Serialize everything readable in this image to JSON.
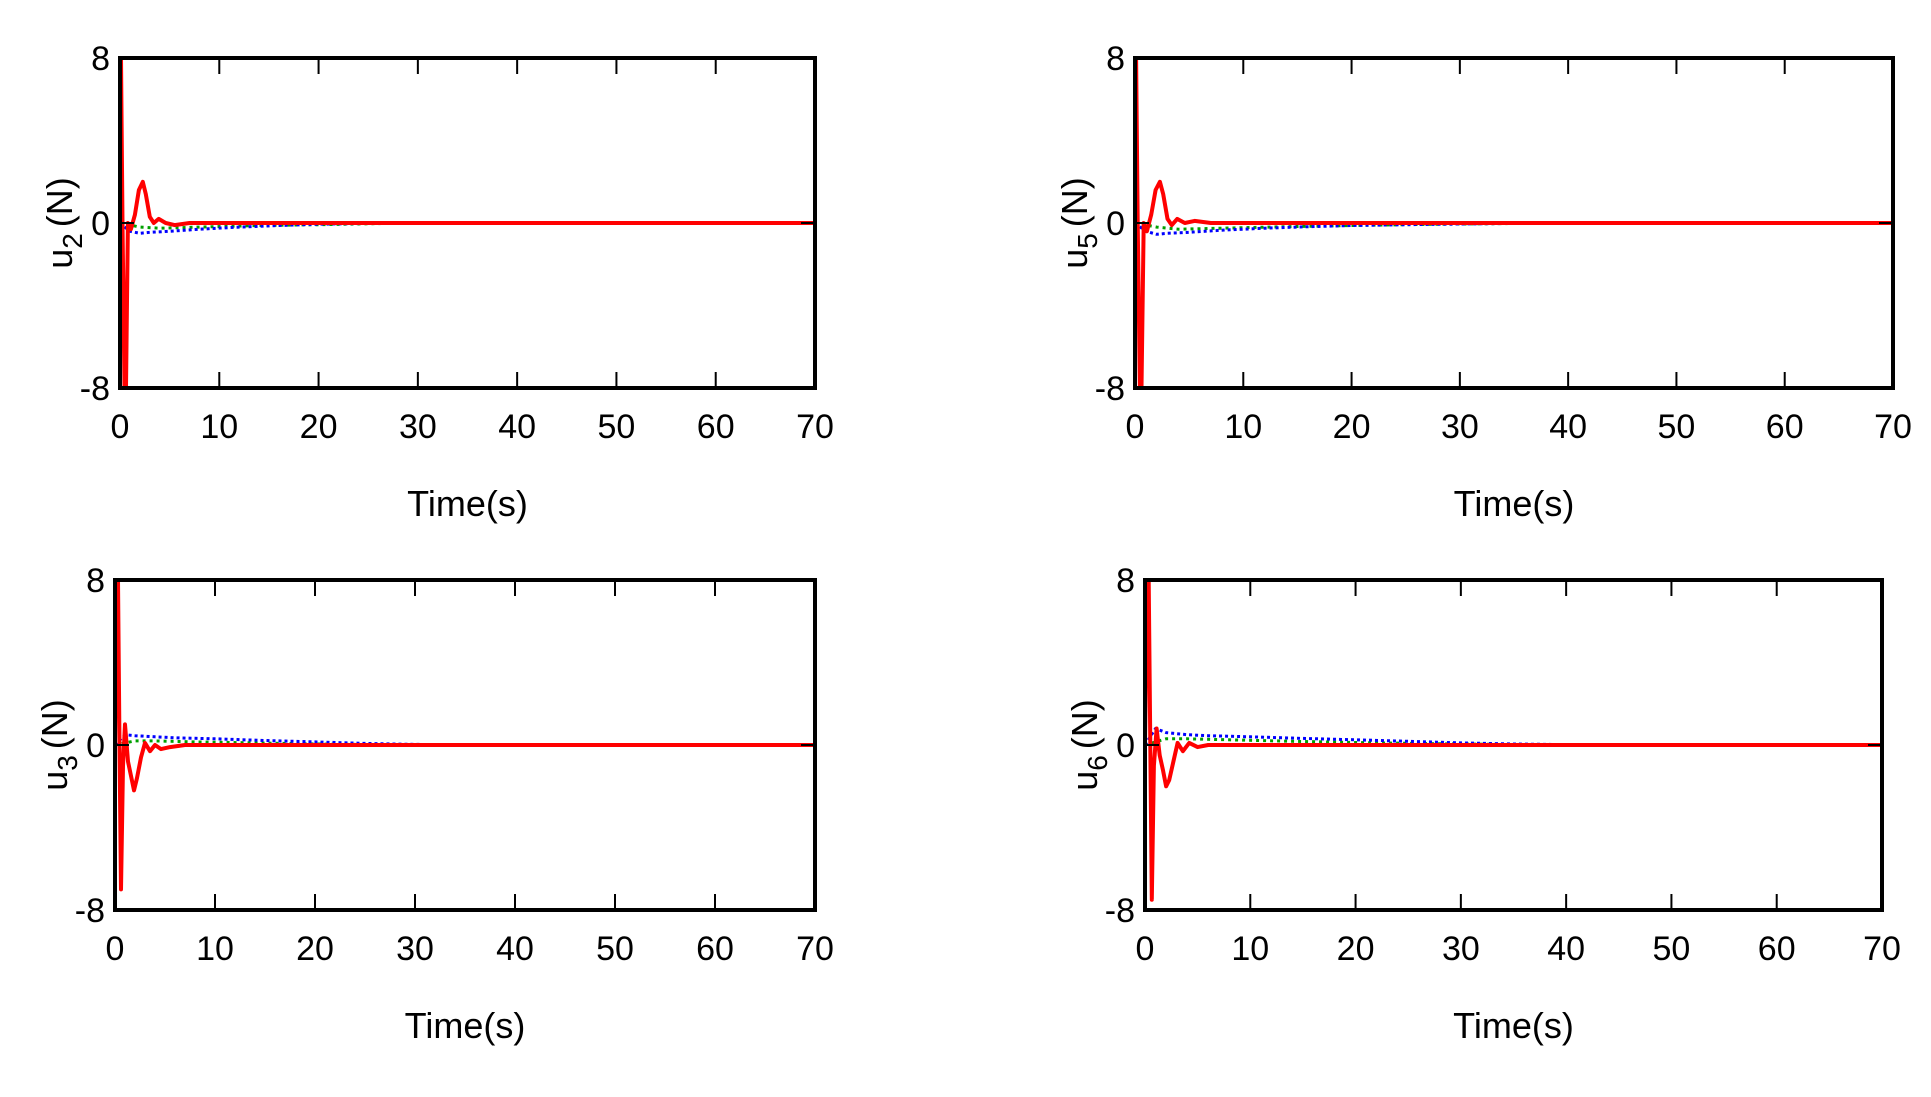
{
  "chart_data": [
    {
      "type": "line",
      "ylabel": "u",
      "ylabel_subscript": "2",
      "ylabel_unit": "(N)",
      "xlabel": "Time(s)",
      "xlim": [
        0,
        70
      ],
      "ylim": [
        -8,
        8
      ],
      "xticks": [
        "0",
        "10",
        "20",
        "30",
        "40",
        "50",
        "60",
        "70"
      ],
      "yticks": [
        "8",
        "0",
        "-8"
      ],
      "colors": {
        "primary": "#ff0000",
        "secondary": "#0000ff",
        "tertiary": "#00a000"
      },
      "series": [
        {
          "values_x": [
            0,
            0.1,
            0.25,
            0.45,
            0.6,
            0.8,
            1.1,
            1.5,
            1.9,
            2.3,
            2.6,
            3.0,
            3.4,
            3.9,
            4.6,
            5.5,
            7,
            10,
            20,
            30,
            40,
            50,
            60,
            70
          ],
          "values_y": [
            8,
            8,
            0,
            -8,
            -8,
            0,
            -0.3,
            0.4,
            1.6,
            2.0,
            1.4,
            0.3,
            0.0,
            0.2,
            0.0,
            -0.1,
            0.0,
            0.0,
            0.0,
            0.0,
            0.0,
            0.0,
            0.0,
            0.0
          ]
        },
        {
          "values_x": [
            0,
            1,
            2,
            3,
            5,
            8,
            12,
            16,
            20,
            25,
            30,
            40,
            50,
            60,
            70
          ],
          "values_y": [
            0,
            -0.4,
            -0.5,
            -0.45,
            -0.4,
            -0.3,
            -0.2,
            -0.12,
            -0.06,
            -0.02,
            0,
            0,
            0,
            0,
            0
          ]
        },
        {
          "values_x": [
            0,
            2,
            4,
            8,
            14,
            20,
            26,
            30,
            40,
            50,
            60,
            70
          ],
          "values_y": [
            0,
            -0.2,
            -0.25,
            -0.2,
            -0.12,
            -0.08,
            -0.03,
            0,
            0,
            0,
            0,
            0
          ]
        }
      ]
    },
    {
      "type": "line",
      "ylabel": "u",
      "ylabel_subscript": "5",
      "ylabel_unit": "(N)",
      "xlabel": "Time(s)",
      "xlim": [
        0,
        70
      ],
      "ylim": [
        -8,
        8
      ],
      "xticks": [
        "0",
        "10",
        "20",
        "30",
        "40",
        "50",
        "60",
        "70"
      ],
      "yticks": [
        "8",
        "0",
        "-8"
      ],
      "colors": {
        "primary": "#ff0000",
        "secondary": "#0000ff",
        "tertiary": "#00a000"
      },
      "series": [
        {
          "values_x": [
            0,
            0.1,
            0.25,
            0.45,
            0.6,
            0.8,
            1.1,
            1.5,
            1.9,
            2.3,
            2.6,
            3.0,
            3.4,
            3.9,
            4.6,
            5.5,
            7,
            10,
            20,
            30,
            40,
            50,
            60,
            70
          ],
          "values_y": [
            8,
            8,
            0,
            -8,
            -8,
            0,
            -0.4,
            0.4,
            1.6,
            2.0,
            1.4,
            0.2,
            -0.1,
            0.2,
            0.0,
            0.1,
            0.0,
            0.0,
            0.0,
            0.0,
            0.0,
            0.0,
            0.0,
            0.0
          ]
        },
        {
          "values_x": [
            0,
            1,
            2,
            3,
            5,
            8,
            12,
            16,
            20,
            25,
            30,
            35,
            40,
            50,
            60,
            70
          ],
          "values_y": [
            0,
            -0.4,
            -0.55,
            -0.5,
            -0.45,
            -0.35,
            -0.25,
            -0.18,
            -0.12,
            -0.08,
            -0.05,
            -0.02,
            0,
            0,
            0,
            0
          ]
        },
        {
          "values_x": [
            0,
            2,
            4,
            8,
            14,
            20,
            28,
            36,
            40,
            50,
            60,
            70
          ],
          "values_y": [
            0,
            -0.2,
            -0.3,
            -0.25,
            -0.18,
            -0.12,
            -0.06,
            -0.02,
            0,
            0,
            0,
            0
          ]
        }
      ]
    },
    {
      "type": "line",
      "ylabel": "u",
      "ylabel_subscript": "3",
      "ylabel_unit": "(N)",
      "xlabel": "Time(s)",
      "xlim": [
        0,
        70
      ],
      "ylim": [
        -8,
        8
      ],
      "xticks": [
        "0",
        "10",
        "20",
        "30",
        "40",
        "50",
        "60",
        "70"
      ],
      "yticks": [
        "8",
        "0",
        "-8"
      ],
      "colors": {
        "primary": "#ff0000",
        "secondary": "#0000ff",
        "tertiary": "#00a000"
      },
      "series": [
        {
          "values_x": [
            0,
            0.15,
            0.3,
            0.45,
            0.6,
            0.8,
            1.0,
            1.3,
            1.6,
            1.9,
            2.2,
            2.6,
            3.0,
            3.5,
            4.0,
            4.6,
            5.5,
            7,
            10,
            20,
            30,
            40,
            50,
            60,
            70
          ],
          "values_y": [
            0,
            8,
            8,
            0,
            -7,
            -1,
            1.0,
            -0.8,
            -1.5,
            -2.2,
            -1.6,
            -0.6,
            0.1,
            -0.3,
            0.0,
            -0.2,
            -0.1,
            0.0,
            0.0,
            0.0,
            0.0,
            0.0,
            0.0,
            0.0,
            0.0
          ]
        },
        {
          "values_x": [
            0,
            1,
            2,
            4,
            6,
            10,
            15,
            20,
            25,
            30,
            40,
            50,
            60,
            70
          ],
          "values_y": [
            0,
            0.5,
            0.45,
            0.4,
            0.35,
            0.3,
            0.22,
            0.15,
            0.08,
            0.03,
            0,
            0,
            0,
            0
          ]
        },
        {
          "values_x": [
            0,
            2,
            4,
            8,
            14,
            20,
            30,
            40,
            50,
            60,
            70
          ],
          "values_y": [
            0,
            0.2,
            0.2,
            0.15,
            0.1,
            0.05,
            0,
            0,
            0,
            0,
            0
          ]
        }
      ]
    },
    {
      "type": "line",
      "ylabel": "u",
      "ylabel_subscript": "6",
      "ylabel_unit": "(N)",
      "xlabel": "Time(s)",
      "xlim": [
        0,
        70
      ],
      "ylim": [
        -8,
        8
      ],
      "xticks": [
        "0",
        "10",
        "20",
        "30",
        "40",
        "50",
        "60",
        "70"
      ],
      "yticks": [
        "8",
        "0",
        "-8"
      ],
      "colors": {
        "primary": "#ff0000",
        "secondary": "#0000ff",
        "tertiary": "#00a000"
      },
      "series": [
        {
          "values_x": [
            0,
            0.2,
            0.35,
            0.5,
            0.65,
            0.85,
            1.1,
            1.4,
            1.7,
            2.0,
            2.3,
            2.7,
            3.1,
            3.6,
            4.2,
            5,
            6,
            8,
            10,
            20,
            30,
            40,
            50,
            60,
            70
          ],
          "values_y": [
            0,
            8,
            8,
            0,
            -7.5,
            -1,
            0.8,
            -0.5,
            -1.2,
            -2.0,
            -1.7,
            -0.8,
            0.1,
            -0.3,
            0.1,
            -0.1,
            0.0,
            0.0,
            0.0,
            0.0,
            0.0,
            0.0,
            0.0,
            0.0,
            0.0
          ]
        },
        {
          "values_x": [
            0,
            1,
            2,
            4,
            6,
            10,
            15,
            20,
            25,
            30,
            35,
            40,
            50,
            60,
            70
          ],
          "values_y": [
            0,
            0.8,
            0.6,
            0.5,
            0.45,
            0.4,
            0.32,
            0.25,
            0.18,
            0.1,
            0.05,
            0.02,
            0,
            0,
            0
          ]
        },
        {
          "values_x": [
            0,
            2,
            4,
            8,
            14,
            20,
            28,
            36,
            40,
            50,
            60,
            70
          ],
          "values_y": [
            0,
            0.3,
            0.3,
            0.25,
            0.18,
            0.12,
            0.06,
            0.02,
            0,
            0,
            0,
            0
          ]
        }
      ]
    }
  ]
}
